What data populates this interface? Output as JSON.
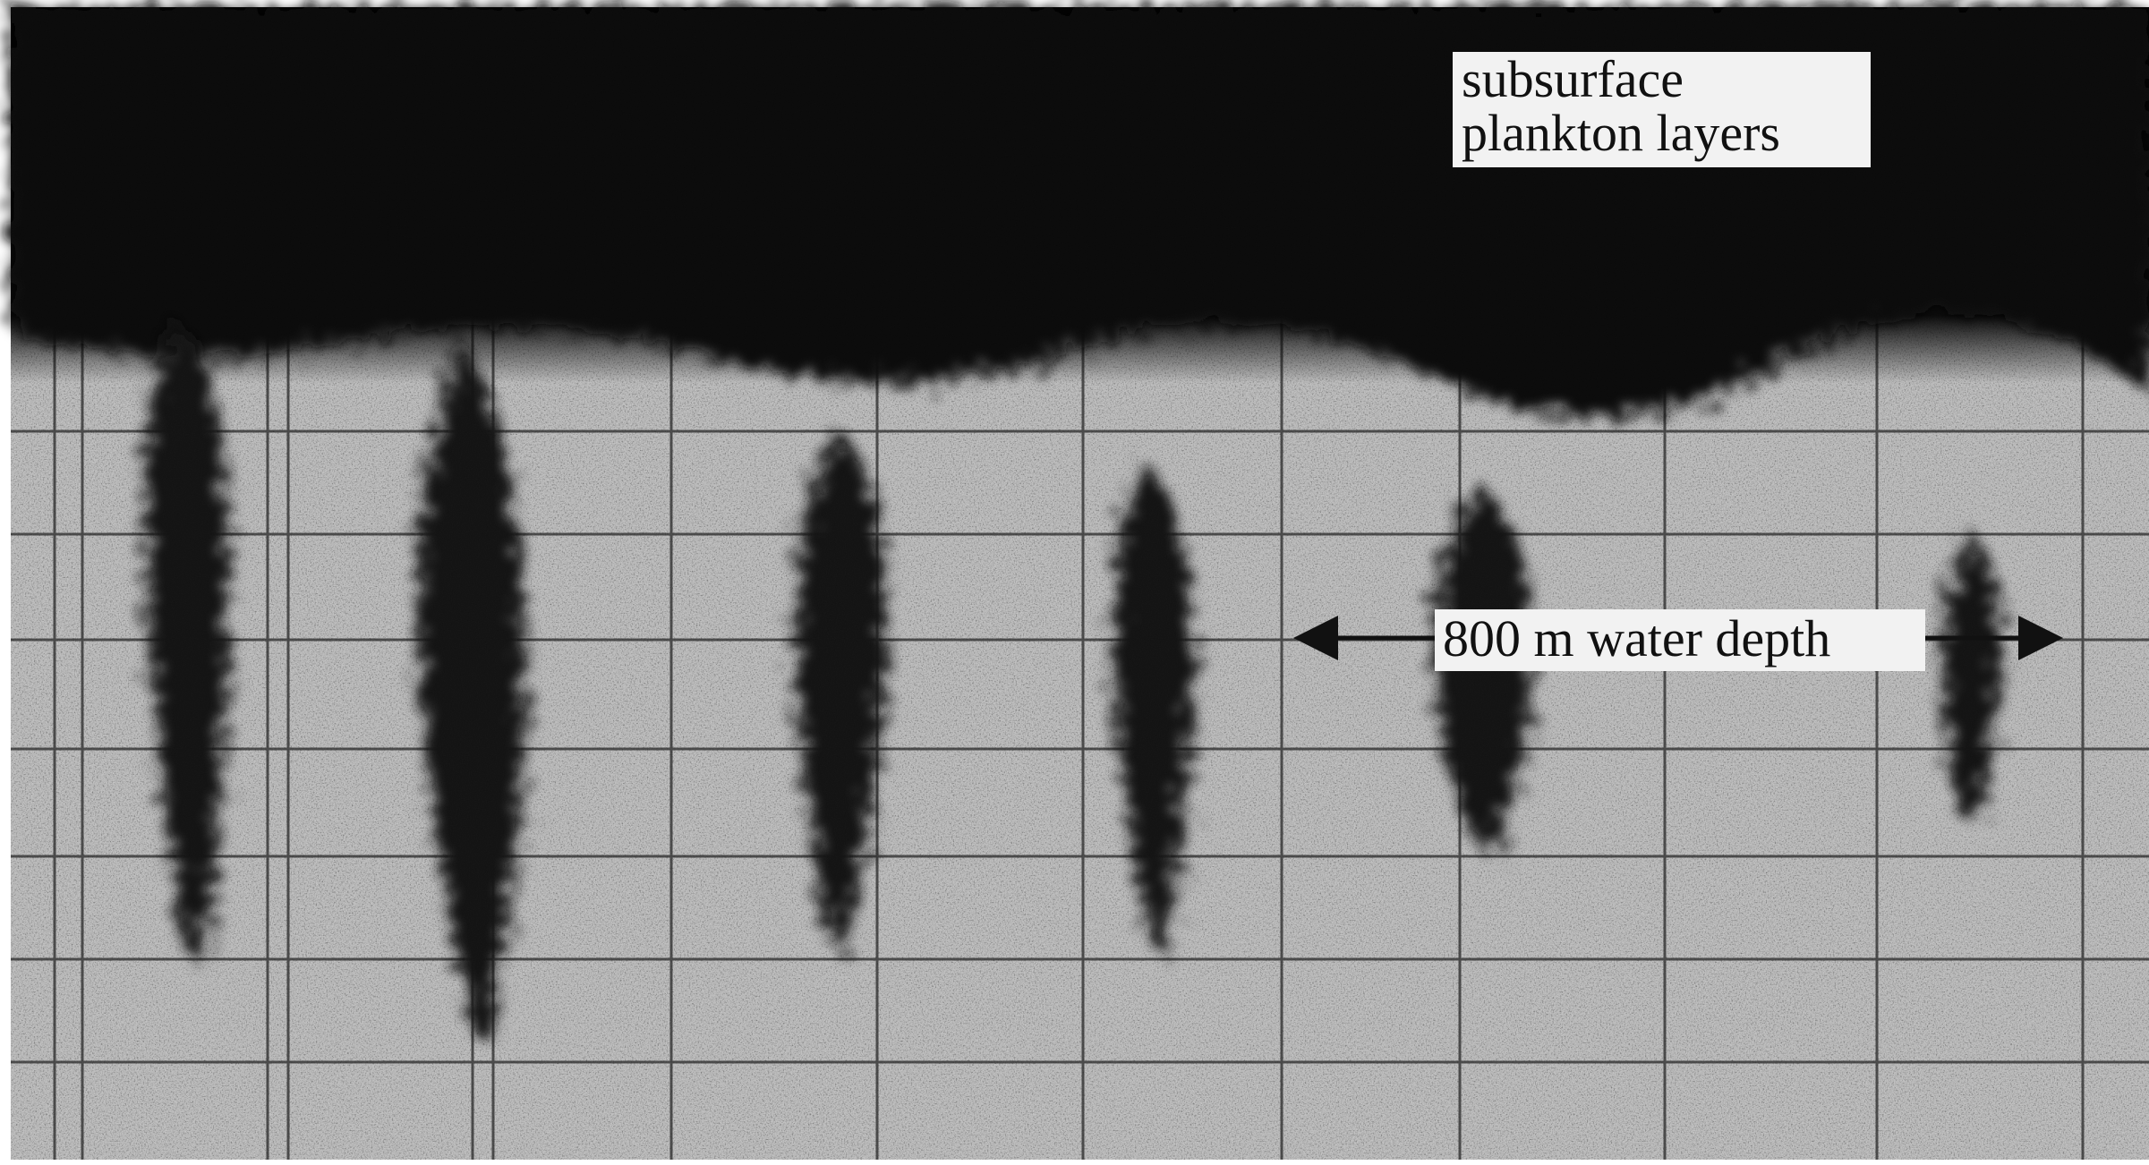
{
  "labels": {
    "plankton": [
      "subsurface",
      "plankton layers"
    ],
    "depth": "800 m water depth"
  }
}
